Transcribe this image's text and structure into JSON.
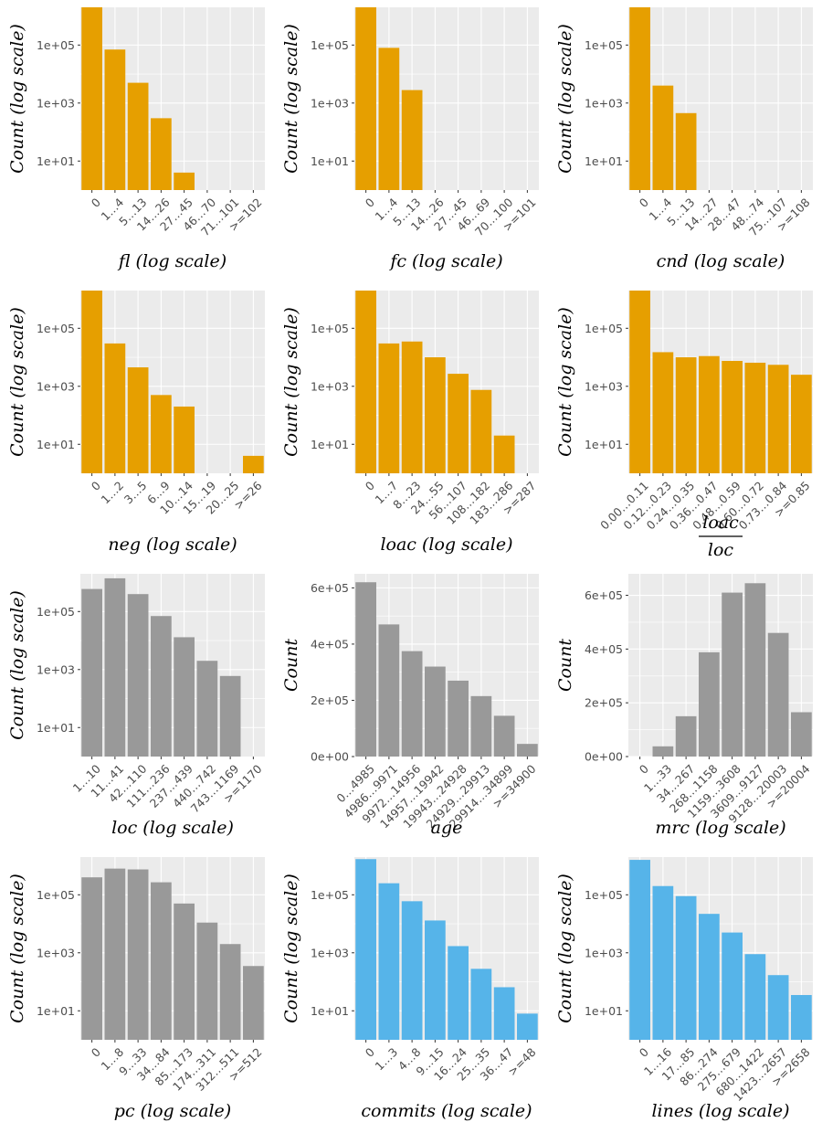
{
  "colors": {
    "orange": "#E69F00",
    "gray": "#999999",
    "blue": "#56B4E9",
    "panel_bg": "#EBEBEB",
    "grid": "#FFFFFF"
  },
  "chart_data": [
    {
      "type": "bar",
      "color": "orange",
      "ylabel": "Count (log scale)",
      "xlabel": "fl (log scale)",
      "scale": "log",
      "ylim": [
        1,
        2000000
      ],
      "yticks": [
        {
          "v": 10,
          "label": "1e+01"
        },
        {
          "v": 1000,
          "label": "1e+03"
        },
        {
          "v": 100000,
          "label": "1e+05"
        }
      ],
      "categories": [
        "0",
        "1…4",
        "5…13",
        "14…26",
        "27…45",
        "46…70",
        "71…101",
        ">=102"
      ],
      "values": [
        2000000,
        70000,
        5000,
        300,
        4,
        0,
        0,
        0
      ]
    },
    {
      "type": "bar",
      "color": "orange",
      "ylabel": "Count (log scale)",
      "xlabel": "fc (log scale)",
      "scale": "log",
      "ylim": [
        1,
        2000000
      ],
      "yticks": [
        {
          "v": 10,
          "label": "1e+01"
        },
        {
          "v": 1000,
          "label": "1e+03"
        },
        {
          "v": 100000,
          "label": "1e+05"
        }
      ],
      "categories": [
        "0",
        "1…4",
        "5…13",
        "14…26",
        "27…45",
        "46…69",
        "70…100",
        ">=101"
      ],
      "values": [
        2000000,
        80000,
        2800,
        0,
        0,
        0,
        0,
        0
      ]
    },
    {
      "type": "bar",
      "color": "orange",
      "ylabel": "Count (log scale)",
      "xlabel": "cnd (log scale)",
      "scale": "log",
      "ylim": [
        1,
        2000000
      ],
      "yticks": [
        {
          "v": 10,
          "label": "1e+01"
        },
        {
          "v": 1000,
          "label": "1e+03"
        },
        {
          "v": 100000,
          "label": "1e+05"
        }
      ],
      "categories": [
        "0",
        "1…4",
        "5…13",
        "14…27",
        "28…47",
        "48…74",
        "75…107",
        ">=108"
      ],
      "values": [
        2000000,
        4000,
        450,
        0,
        0,
        0,
        0,
        0
      ]
    },
    {
      "type": "bar",
      "color": "orange",
      "ylabel": "Count (log scale)",
      "xlabel": "neg (log scale)",
      "scale": "log",
      "ylim": [
        1,
        2000000
      ],
      "yticks": [
        {
          "v": 10,
          "label": "1e+01"
        },
        {
          "v": 1000,
          "label": "1e+03"
        },
        {
          "v": 100000,
          "label": "1e+05"
        }
      ],
      "categories": [
        "0",
        "1…2",
        "3…5",
        "6…9",
        "10…14",
        "15…19",
        "20…25",
        ">=26"
      ],
      "values": [
        2000000,
        30000,
        4500,
        500,
        200,
        0,
        0,
        4
      ]
    },
    {
      "type": "bar",
      "color": "orange",
      "ylabel": "Count (log scale)",
      "xlabel": "loac (log scale)",
      "scale": "log",
      "ylim": [
        1,
        2000000
      ],
      "yticks": [
        {
          "v": 10,
          "label": "1e+01"
        },
        {
          "v": 1000,
          "label": "1e+03"
        },
        {
          "v": 100000,
          "label": "1e+05"
        }
      ],
      "categories": [
        "0",
        "1…7",
        "8…23",
        "24…55",
        "56…107",
        "108…182",
        "183…286",
        ">=287"
      ],
      "values": [
        2000000,
        30000,
        35000,
        10000,
        2700,
        750,
        20,
        0
      ]
    },
    {
      "type": "bar",
      "color": "orange",
      "ylabel": "Count (log scale)",
      "xlabel_num": "loac",
      "xlabel_den": "loc",
      "scale": "log",
      "ylim": [
        1,
        2000000
      ],
      "yticks": [
        {
          "v": 10,
          "label": "1e+01"
        },
        {
          "v": 1000,
          "label": "1e+03"
        },
        {
          "v": 100000,
          "label": "1e+05"
        }
      ],
      "categories": [
        "0.00…0.11",
        "0.12…0.23",
        "0.24…0.35",
        "0.36…0.47",
        "0.48…0.59",
        "0.60…0.72",
        "0.73…0.84",
        ">=0.85"
      ],
      "values": [
        2000000,
        15000,
        10000,
        11000,
        7500,
        6500,
        5500,
        2500
      ]
    },
    {
      "type": "bar",
      "color": "gray",
      "ylabel": "Count (log scale)",
      "xlabel": "loc (log scale)",
      "scale": "log",
      "ylim": [
        1,
        2000000
      ],
      "yticks": [
        {
          "v": 10,
          "label": "1e+01"
        },
        {
          "v": 1000,
          "label": "1e+03"
        },
        {
          "v": 100000,
          "label": "1e+05"
        }
      ],
      "categories": [
        "1…10",
        "11…41",
        "42…110",
        "111…236",
        "237…439",
        "440…742",
        "743…1169",
        ">=1170"
      ],
      "values": [
        600000,
        1400000,
        400000,
        70000,
        13000,
        2000,
        600,
        0
      ]
    },
    {
      "type": "bar",
      "color": "gray",
      "ylabel": "Count",
      "xlabel": "age",
      "scale": "linear",
      "ylim": [
        0,
        650000
      ],
      "yticks": [
        {
          "v": 0,
          "label": "0e+00"
        },
        {
          "v": 200000,
          "label": "2e+05"
        },
        {
          "v": 400000,
          "label": "4e+05"
        },
        {
          "v": 600000,
          "label": "6e+05"
        }
      ],
      "categories": [
        "0…4985",
        "4986…9971",
        "9972…14956",
        "14957…19942",
        "19943…24928",
        "24929…29913",
        "29914…34899",
        ">=34900"
      ],
      "values": [
        620000,
        470000,
        375000,
        320000,
        270000,
        215000,
        145000,
        45000
      ]
    },
    {
      "type": "bar",
      "color": "gray",
      "ylabel": "Count",
      "xlabel": "mrc (log scale)",
      "scale": "linear",
      "ylim": [
        0,
        680000
      ],
      "yticks": [
        {
          "v": 0,
          "label": "0e+00"
        },
        {
          "v": 200000,
          "label": "2e+05"
        },
        {
          "v": 400000,
          "label": "4e+05"
        },
        {
          "v": 600000,
          "label": "6e+05"
        }
      ],
      "categories": [
        "0",
        "1…33",
        "34…267",
        "268…1158",
        "1159…3608",
        "3609…9127",
        "9128…20003",
        ">=20004"
      ],
      "values": [
        0,
        38000,
        150000,
        388000,
        610000,
        645000,
        460000,
        165000
      ]
    },
    {
      "type": "bar",
      "color": "gray",
      "ylabel": "Count (log scale)",
      "xlabel": "pc (log scale)",
      "scale": "log",
      "ylim": [
        1,
        2000000
      ],
      "yticks": [
        {
          "v": 10,
          "label": "1e+01"
        },
        {
          "v": 1000,
          "label": "1e+03"
        },
        {
          "v": 100000,
          "label": "1e+05"
        }
      ],
      "categories": [
        "0",
        "1…8",
        "9…33",
        "34…84",
        "85…173",
        "174…311",
        "312…511",
        ">=512"
      ],
      "values": [
        400000,
        800000,
        750000,
        270000,
        50000,
        11000,
        2000,
        350
      ]
    },
    {
      "type": "bar",
      "color": "blue",
      "ylabel": "Count (log scale)",
      "xlabel": "commits (log scale)",
      "scale": "log",
      "ylim": [
        1,
        2000000
      ],
      "yticks": [
        {
          "v": 10,
          "label": "1e+01"
        },
        {
          "v": 1000,
          "label": "1e+03"
        },
        {
          "v": 100000,
          "label": "1e+05"
        }
      ],
      "categories": [
        "0",
        "1…3",
        "4…8",
        "9…15",
        "16…24",
        "25…35",
        "36…47",
        ">=48"
      ],
      "values": [
        1700000,
        250000,
        60000,
        13000,
        1700,
        280,
        65,
        8
      ]
    },
    {
      "type": "bar",
      "color": "blue",
      "ylabel": "Count (log scale)",
      "xlabel": "lines (log scale)",
      "scale": "log",
      "ylim": [
        1,
        2000000
      ],
      "yticks": [
        {
          "v": 10,
          "label": "1e+01"
        },
        {
          "v": 1000,
          "label": "1e+03"
        },
        {
          "v": 100000,
          "label": "1e+05"
        }
      ],
      "categories": [
        "0",
        "1…16",
        "17…85",
        "86…274",
        "275…679",
        "680…1422",
        "1423…2657",
        ">=2658"
      ],
      "values": [
        1600000,
        200000,
        90000,
        22000,
        5000,
        900,
        170,
        35
      ]
    }
  ]
}
